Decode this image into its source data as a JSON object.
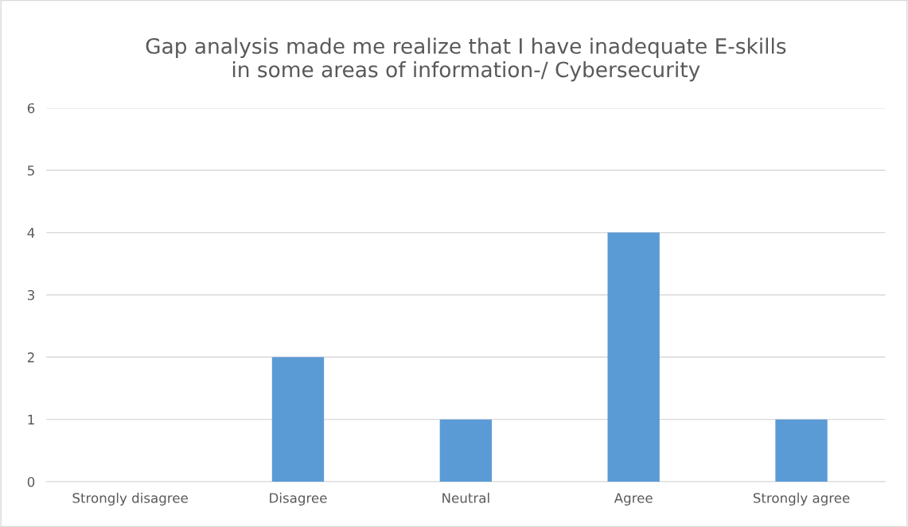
{
  "chart_data": {
    "type": "bar",
    "title": "Gap analysis made me realize that I have inadequate E-skills\nin some areas of information-/ Cybersecurity",
    "categories": [
      "Strongly disagree",
      "Disagree",
      "Neutral",
      "Agree",
      "Strongly agree"
    ],
    "values": [
      0,
      2,
      1,
      4,
      1
    ],
    "color": "#5b9bd5",
    "ylim": [
      0,
      6
    ],
    "yticks": [
      0,
      1,
      2,
      3,
      4,
      5,
      6
    ],
    "grid": "y",
    "legend": false
  }
}
